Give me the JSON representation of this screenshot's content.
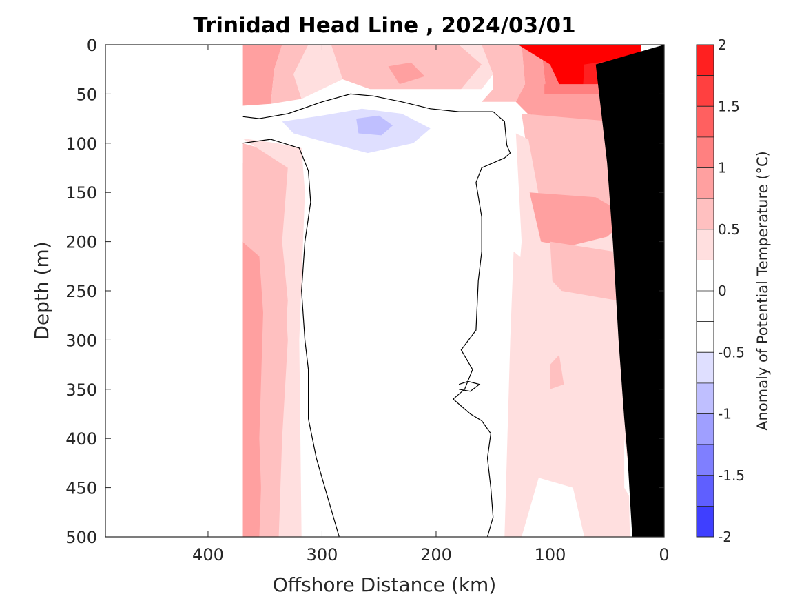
{
  "chart_data": {
    "type": "heatmap",
    "title": "Trinidad Head Line , 2024/03/01",
    "xlabel": "Offshore Distance (km)",
    "ylabel": "Depth (m)",
    "xlim": [
      490,
      0
    ],
    "ylim": [
      500,
      0
    ],
    "x_reversed": true,
    "y_reversed": true,
    "xticks": [
      "400",
      "300",
      "200",
      "100",
      "0"
    ],
    "xtick_values": [
      400,
      300,
      200,
      100,
      0
    ],
    "yticks": [
      "0",
      "50",
      "100",
      "150",
      "200",
      "250",
      "300",
      "350",
      "400",
      "450",
      "500"
    ],
    "ytick_values": [
      0,
      50,
      100,
      150,
      200,
      250,
      300,
      350,
      400,
      450,
      500
    ],
    "colorbar": {
      "label": "Anomaly of Potential Temperature (°C)",
      "range": [
        -2,
        2
      ],
      "ticks": [
        "2",
        "1.5",
        "1",
        "0.5",
        "0",
        "-0.5",
        "-1",
        "-1.5",
        "-2"
      ],
      "tick_values": [
        2,
        1.5,
        1,
        0.5,
        0,
        -0.5,
        -1,
        -1.5,
        -2
      ],
      "levels": [
        2,
        1.75,
        1.5,
        1.25,
        1,
        0.75,
        0.5,
        0.25,
        -0.25,
        -0.5,
        -0.75,
        -1,
        -1.25,
        -1.5,
        -1.75,
        -2
      ],
      "colors": [
        "#ff0000",
        "#ff2020",
        "#ff4040",
        "#ff6060",
        "#ff8080",
        "#ffa0a0",
        "#ffc0c0",
        "#ffdfdf",
        "#ffffff",
        "#ffffff",
        "#dfdfff",
        "#bfbfff",
        "#9f9fff",
        "#7f7fff",
        "#5f5fff",
        "#3f3fff",
        "#1f1fff",
        "#0000ff"
      ]
    },
    "data_extent_km": [
      370,
      20
    ],
    "bottom_color": "#000000",
    "regions": [
      {
        "anomaly": 0.9,
        "points": [
          [
            370,
            0
          ],
          [
            335,
            0
          ],
          [
            342,
            25
          ],
          [
            345,
            60
          ],
          [
            370,
            62
          ]
        ]
      },
      {
        "anomaly": 0.6,
        "points": [
          [
            335,
            0
          ],
          [
            312,
            0
          ],
          [
            325,
            30
          ],
          [
            318,
            55
          ],
          [
            345,
            60
          ],
          [
            342,
            25
          ]
        ]
      },
      {
        "anomaly": 0.4,
        "points": [
          [
            312,
            0
          ],
          [
            292,
            0
          ],
          [
            282,
            35
          ],
          [
            318,
            55
          ],
          [
            325,
            30
          ]
        ]
      },
      {
        "anomaly": 0.6,
        "points": [
          [
            292,
            0
          ],
          [
            180,
            0
          ],
          [
            160,
            20
          ],
          [
            178,
            45
          ],
          [
            258,
            45
          ],
          [
            282,
            35
          ]
        ]
      },
      {
        "anomaly": 0.8,
        "points": [
          [
            222,
            18
          ],
          [
            242,
            22
          ],
          [
            232,
            40
          ],
          [
            210,
            32
          ]
        ]
      },
      {
        "anomaly": 0.4,
        "points": [
          [
            180,
            0
          ],
          [
            160,
            0
          ],
          [
            150,
            30
          ],
          [
            160,
            45
          ],
          [
            178,
            45
          ],
          [
            160,
            20
          ]
        ]
      },
      {
        "anomaly": 0.6,
        "points": [
          [
            160,
            0
          ],
          [
            125,
            0
          ],
          [
            122,
            40
          ],
          [
            130,
            58
          ],
          [
            160,
            58
          ],
          [
            150,
            45
          ],
          [
            150,
            30
          ]
        ]
      },
      {
        "anomaly": 0.9,
        "points": [
          [
            125,
            0
          ],
          [
            108,
            0
          ],
          [
            103,
            52
          ],
          [
            118,
            72
          ],
          [
            130,
            58
          ],
          [
            122,
            40
          ]
        ]
      },
      {
        "anomaly": 1.15,
        "points": [
          [
            108,
            0
          ],
          [
            90,
            0
          ],
          [
            84,
            75
          ],
          [
            100,
            85
          ],
          [
            118,
            72
          ],
          [
            103,
            52
          ]
        ]
      },
      {
        "anomaly": 1.4,
        "points": [
          [
            90,
            0
          ],
          [
            72,
            0
          ],
          [
            68,
            85
          ],
          [
            84,
            95
          ],
          [
            84,
            75
          ]
        ]
      },
      {
        "anomaly": 1.65,
        "points": [
          [
            72,
            0
          ],
          [
            20,
            0
          ],
          [
            20,
            60
          ],
          [
            35,
            80
          ],
          [
            50,
            85
          ],
          [
            68,
            85
          ]
        ]
      },
      {
        "anomaly": 2.0,
        "points": [
          [
            128,
            0
          ],
          [
            20,
            0
          ],
          [
            20,
            50
          ],
          [
            45,
            72
          ],
          [
            65,
            70
          ],
          [
            90,
            45
          ],
          [
            100,
            20
          ]
        ]
      },
      {
        "anomaly": 1.9,
        "points": [
          [
            70,
            20
          ],
          [
            40,
            15
          ],
          [
            25,
            30
          ],
          [
            30,
            60
          ],
          [
            50,
            80
          ],
          [
            72,
            60
          ]
        ]
      },
      {
        "anomaly": 1.15,
        "points": [
          [
            105,
            40
          ],
          [
            30,
            40
          ],
          [
            25,
            90
          ],
          [
            60,
            100
          ],
          [
            105,
            95
          ]
        ]
      },
      {
        "anomaly": 0.9,
        "points": [
          [
            120,
            50
          ],
          [
            25,
            50
          ],
          [
            22,
            150
          ],
          [
            60,
            115
          ],
          [
            80,
            130
          ],
          [
            108,
            110
          ]
        ]
      },
      {
        "anomaly": 0.6,
        "points": [
          [
            125,
            70
          ],
          [
            25,
            80
          ],
          [
            20,
            200
          ],
          [
            100,
            200
          ],
          [
            115,
            150
          ]
        ]
      },
      {
        "anomaly": 0.4,
        "points": [
          [
            130,
            90
          ],
          [
            22,
            150
          ],
          [
            20,
            240
          ],
          [
            130,
            270
          ],
          [
            125,
            200
          ]
        ]
      },
      {
        "anomaly": 0.6,
        "points": [
          [
            120,
            90
          ],
          [
            25,
            150
          ],
          [
            25,
            175
          ],
          [
            100,
            200
          ],
          [
            108,
            165
          ]
        ]
      },
      {
        "anomaly": 0.9,
        "points": [
          [
            118,
            150
          ],
          [
            60,
            155
          ],
          [
            30,
            175
          ],
          [
            50,
            195
          ],
          [
            85,
            205
          ],
          [
            108,
            200
          ]
        ]
      },
      {
        "anomaly": 0.4,
        "points": [
          [
            132,
            210
          ],
          [
            90,
            250
          ],
          [
            35,
            255
          ],
          [
            30,
            500
          ],
          [
            70,
            500
          ],
          [
            80,
            450
          ],
          [
            110,
            440
          ],
          [
            125,
            500
          ],
          [
            140,
            500
          ],
          [
            135,
            300
          ]
        ]
      },
      {
        "anomaly": 0.6,
        "points": [
          [
            100,
            200
          ],
          [
            45,
            210
          ],
          [
            40,
            260
          ],
          [
            90,
            250
          ],
          [
            98,
            240
          ]
        ]
      },
      {
        "anomaly": 0.6,
        "points": [
          [
            100,
            325
          ],
          [
            92,
            315
          ],
          [
            88,
            345
          ],
          [
            100,
            350
          ]
        ]
      },
      {
        "anomaly": 0.9,
        "points": [
          [
            370,
            120
          ],
          [
            330,
            125
          ],
          [
            335,
            200
          ],
          [
            330,
            260
          ],
          [
            335,
            350
          ],
          [
            345,
            500
          ],
          [
            370,
            500
          ]
        ]
      },
      {
        "anomaly": 0.6,
        "points": [
          [
            370,
            100
          ],
          [
            345,
            108
          ],
          [
            330,
            125
          ],
          [
            330,
            480
          ],
          [
            340,
            500
          ],
          [
            370,
            500
          ]
        ]
      },
      {
        "anomaly": 0.4,
        "points": [
          [
            370,
            95
          ],
          [
            340,
            100
          ],
          [
            318,
            105
          ],
          [
            315,
            150
          ],
          [
            320,
            300
          ],
          [
            318,
            500
          ],
          [
            345,
            500
          ],
          [
            330,
            260
          ],
          [
            335,
            200
          ],
          [
            330,
            125
          ]
        ]
      },
      {
        "anomaly": 0.9,
        "points": [
          [
            370,
            200
          ],
          [
            355,
            215
          ],
          [
            350,
            300
          ],
          [
            352,
            400
          ],
          [
            355,
            500
          ],
          [
            370,
            500
          ]
        ]
      },
      {
        "anomaly": 0.6,
        "points": [
          [
            350,
            210
          ],
          [
            335,
            200
          ],
          [
            330,
            300
          ],
          [
            335,
            400
          ],
          [
            338,
            500
          ],
          [
            352,
            500
          ],
          [
            355,
            400
          ]
        ]
      },
      {
        "anomaly": -0.4,
        "points": [
          [
            370,
            70
          ],
          [
            340,
            75
          ],
          [
            310,
            68
          ],
          [
            275,
            60
          ],
          [
            240,
            58
          ],
          [
            200,
            70
          ],
          [
            170,
            82
          ],
          [
            178,
            95
          ],
          [
            195,
            110
          ],
          [
            215,
            125
          ],
          [
            250,
            140
          ],
          [
            280,
            130
          ],
          [
            320,
            100
          ],
          [
            355,
            92
          ],
          [
            370,
            88
          ]
        ]
      },
      {
        "anomaly": -0.6,
        "points": [
          [
            335,
            78
          ],
          [
            300,
            72
          ],
          [
            265,
            65
          ],
          [
            230,
            70
          ],
          [
            205,
            85
          ],
          [
            220,
            100
          ],
          [
            260,
            110
          ],
          [
            300,
            98
          ],
          [
            325,
            90
          ]
        ]
      },
      {
        "anomaly": -0.9,
        "points": [
          [
            270,
            75
          ],
          [
            250,
            72
          ],
          [
            238,
            82
          ],
          [
            248,
            92
          ],
          [
            268,
            90
          ]
        ]
      },
      {
        "anomaly": -0.4,
        "points": [
          [
            305,
            210
          ],
          [
            298,
            220
          ],
          [
            300,
            240
          ],
          [
            308,
            228
          ]
        ]
      },
      {
        "anomaly": -0.4,
        "points": [
          [
            240,
            218
          ],
          [
            220,
            220
          ],
          [
            228,
            235
          ],
          [
            240,
            232
          ]
        ]
      },
      {
        "anomaly": -0.4,
        "points": [
          [
            35,
            400
          ],
          [
            30,
            440
          ],
          [
            30,
            460
          ],
          [
            35,
            450
          ]
        ]
      }
    ],
    "zero_contours": [
      [
        [
          370,
          73
        ],
        [
          355,
          75
        ],
        [
          330,
          70
        ],
        [
          300,
          58
        ],
        [
          275,
          50
        ],
        [
          255,
          52
        ],
        [
          230,
          58
        ],
        [
          205,
          65
        ],
        [
          180,
          68
        ],
        [
          150,
          68
        ],
        [
          140,
          78
        ],
        [
          138,
          102
        ],
        [
          135,
          110
        ],
        [
          140,
          115
        ],
        [
          160,
          125
        ],
        [
          165,
          140
        ],
        [
          160,
          175
        ],
        [
          160,
          210
        ],
        [
          163,
          240
        ],
        [
          165,
          290
        ],
        [
          178,
          310
        ],
        [
          168,
          330
        ],
        [
          175,
          350
        ],
        [
          185,
          360
        ],
        [
          170,
          375
        ],
        [
          160,
          382
        ],
        [
          152,
          395
        ],
        [
          155,
          420
        ],
        [
          152,
          450
        ],
        [
          150,
          480
        ],
        [
          155,
          500
        ]
      ],
      [
        [
          370,
          100
        ],
        [
          345,
          96
        ],
        [
          320,
          105
        ],
        [
          312,
          128
        ],
        [
          310,
          160
        ],
        [
          315,
          200
        ],
        [
          318,
          250
        ],
        [
          315,
          300
        ],
        [
          312,
          330
        ],
        [
          312,
          380
        ],
        [
          305,
          420
        ],
        [
          295,
          460
        ],
        [
          285,
          500
        ]
      ],
      [
        [
          180,
          345
        ],
        [
          172,
          342
        ],
        [
          162,
          345
        ],
        [
          170,
          352
        ],
        [
          180,
          350
        ]
      ],
      [
        [
          40,
          150
        ],
        [
          35,
          175
        ]
      ],
      [
        [
          35,
          320
        ],
        [
          30,
          360
        ],
        [
          28,
          400
        ],
        [
          25,
          440
        ],
        [
          25,
          470
        ]
      ]
    ],
    "bottom": [
      [
        0,
        0
      ],
      [
        0,
        500
      ],
      [
        28,
        500
      ],
      [
        30,
        460
      ],
      [
        32,
        420
      ],
      [
        35,
        380
      ],
      [
        40,
        300
      ],
      [
        45,
        200
      ],
      [
        50,
        120
      ],
      [
        60,
        20
      ],
      [
        0,
        0
      ]
    ]
  }
}
